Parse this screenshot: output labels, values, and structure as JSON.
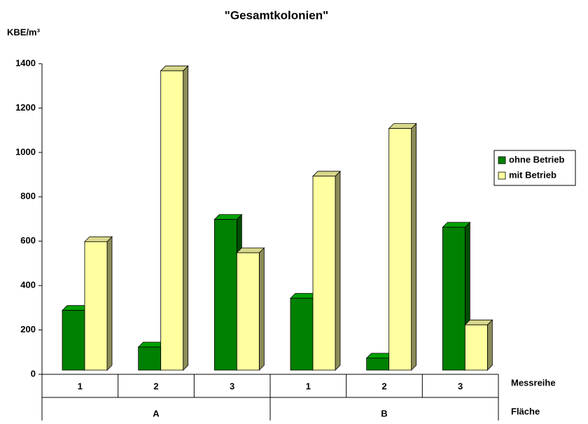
{
  "chart_data": {
    "type": "bar3d",
    "title": "\"Gesamtkolonien\"",
    "y_label": "KBE/m³",
    "x_label": "Messreihe",
    "group_label": "Fläche",
    "categories": [
      "1",
      "2",
      "3",
      "1",
      "2",
      "3"
    ],
    "groups": [
      {
        "name": "A",
        "span": 3
      },
      {
        "name": "B",
        "span": 3
      }
    ],
    "series": [
      {
        "name": "ohne Betrieb",
        "color": "#008000",
        "side": "#004d00",
        "top": "#00a000",
        "values": [
          310,
          145,
          720,
          365,
          95,
          685
        ]
      },
      {
        "name": "mit Betrieb",
        "color": "#ffffa0",
        "side": "#8c8c5a",
        "top": "#d7d78c",
        "values": [
          620,
          1390,
          570,
          915,
          1130,
          245
        ]
      }
    ],
    "ylim": [
      0,
      1400
    ],
    "yticks": [
      0,
      200,
      400,
      600,
      800,
      1000,
      1200,
      1400
    ],
    "legend": "right"
  }
}
